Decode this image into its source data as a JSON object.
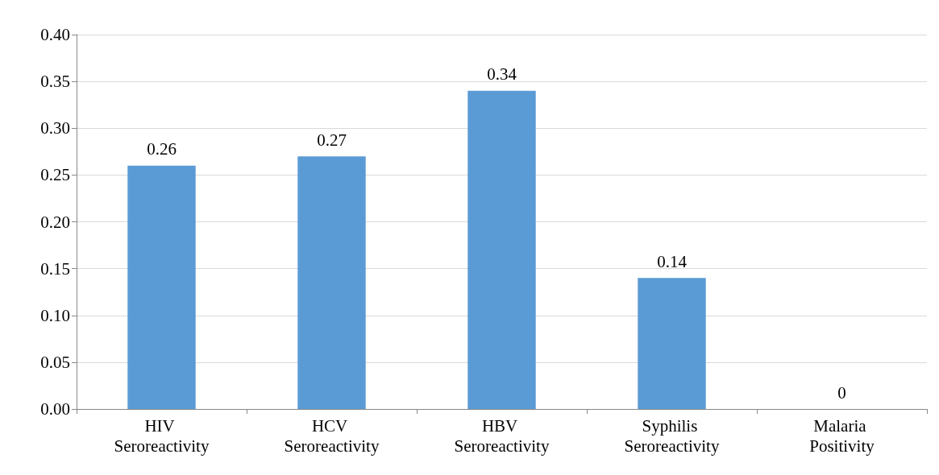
{
  "chart_data": {
    "type": "bar",
    "categories": [
      "HIV Seroreactivity",
      "HCV Seroreactivity",
      "HBV Seroreactivity",
      "Syphilis Seroreactivity",
      "Malaria Positivity"
    ],
    "values": [
      0.26,
      0.27,
      0.34,
      0.14,
      0
    ],
    "color": "#5b9bd5",
    "ylim": [
      0,
      0.4
    ],
    "yticks": [
      {
        "value": 0,
        "label": "0.00"
      },
      {
        "value": 0.05,
        "label": "0.05"
      },
      {
        "value": 0.1,
        "label": "0.10"
      },
      {
        "value": 0.15,
        "label": "0.15"
      },
      {
        "value": 0.2,
        "label": "0.20"
      },
      {
        "value": 0.25,
        "label": "0.25"
      },
      {
        "value": 0.3,
        "label": "0.30"
      },
      {
        "value": 0.35,
        "label": "0.35"
      },
      {
        "value": 0.4,
        "label": "0.40"
      }
    ],
    "grid": "y",
    "data_labels": true
  }
}
